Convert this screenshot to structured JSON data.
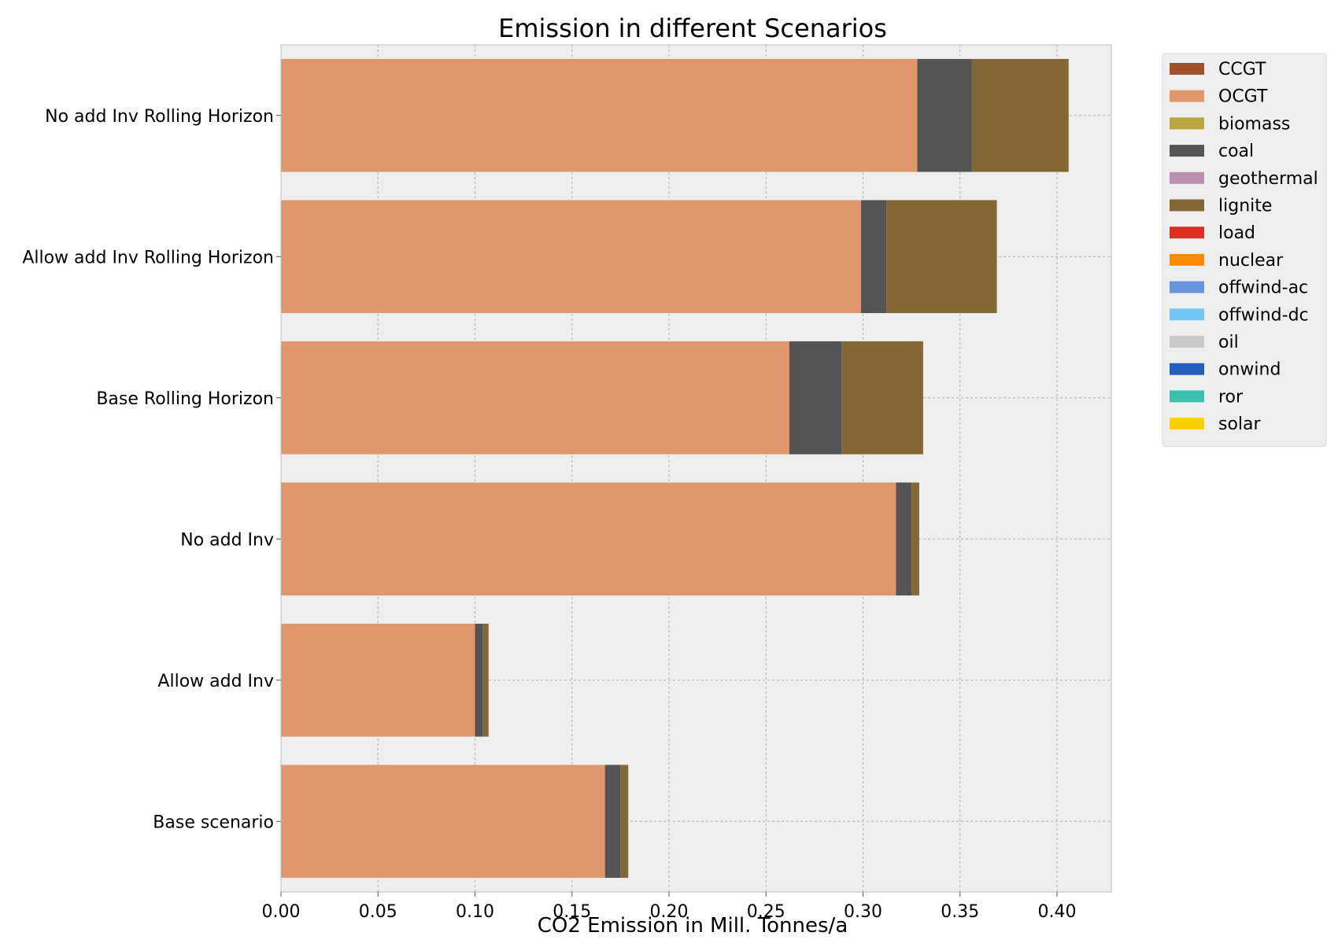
{
  "chart_data": {
    "type": "bar",
    "orientation": "horizontal",
    "stacked": true,
    "title": "Emission in different Scenarios",
    "xlabel": "CO2 Emission in Mill. Tonnes/a",
    "ylabel": "",
    "xlim": [
      0,
      0.428
    ],
    "xticks": [
      "0.00",
      "0.05",
      "0.10",
      "0.15",
      "0.20",
      "0.25",
      "0.30",
      "0.35",
      "0.40"
    ],
    "grid": true,
    "legend_position": "outside-right",
    "categories": [
      "No add Inv Rolling Horizon",
      "Allow add Inv Rolling Horizon",
      "Base Rolling Horizon",
      "No add Inv",
      "Allow add Inv",
      "Base scenario"
    ],
    "series": [
      {
        "name": "CCGT",
        "color": "#a0522d",
        "values": [
          0,
          0,
          0,
          0,
          0,
          0
        ]
      },
      {
        "name": "OCGT",
        "color": "#e0976d",
        "values": [
          0.328,
          0.299,
          0.262,
          0.317,
          0.1,
          0.167
        ]
      },
      {
        "name": "biomass",
        "color": "#baa741",
        "values": [
          0,
          0,
          0,
          0,
          0,
          0
        ]
      },
      {
        "name": "coal",
        "color": "#545454",
        "values": [
          0.028,
          0.013,
          0.027,
          0.008,
          0.004,
          0.008
        ]
      },
      {
        "name": "geothermal",
        "color": "#ba91b1",
        "values": [
          0,
          0,
          0,
          0,
          0,
          0
        ]
      },
      {
        "name": "lignite",
        "color": "#826837",
        "values": [
          0.05,
          0.057,
          0.042,
          0.004,
          0.003,
          0.004
        ]
      },
      {
        "name": "load",
        "color": "#dd2e23",
        "values": [
          0,
          0,
          0,
          0,
          0,
          0
        ]
      },
      {
        "name": "nuclear",
        "color": "#ff8c00",
        "values": [
          0,
          0,
          0,
          0,
          0,
          0
        ]
      },
      {
        "name": "offwind-ac",
        "color": "#6895dd",
        "values": [
          0,
          0,
          0,
          0,
          0,
          0
        ]
      },
      {
        "name": "offwind-dc",
        "color": "#74c6f2",
        "values": [
          0,
          0,
          0,
          0,
          0,
          0
        ]
      },
      {
        "name": "oil",
        "color": "#c9c9c9",
        "values": [
          0,
          0,
          0,
          0,
          0,
          0
        ]
      },
      {
        "name": "onwind",
        "color": "#235ebc",
        "values": [
          0,
          0,
          0,
          0,
          0,
          0
        ]
      },
      {
        "name": "ror",
        "color": "#3dbfb0",
        "values": [
          0,
          0,
          0,
          0,
          0,
          0
        ]
      },
      {
        "name": "solar",
        "color": "#f9d002",
        "values": [
          0,
          0,
          0,
          0,
          0,
          0
        ]
      }
    ],
    "colors": {
      "plot_background": "#eeeeee",
      "grid": "#b0b0b0",
      "legend_background": "#eeeeee"
    }
  }
}
